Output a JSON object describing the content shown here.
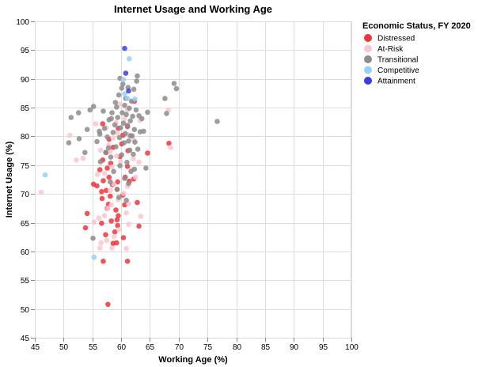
{
  "chart_data": {
    "type": "scatter",
    "title": "Internet Usage and Working Age",
    "xlabel": "Working Age (%)",
    "ylabel": "Internet Usage (%)",
    "xlim": [
      45,
      100
    ],
    "ylim": [
      45,
      100
    ],
    "x_ticks": [
      45,
      50,
      55,
      60,
      65,
      70,
      75,
      80,
      85,
      90,
      95,
      100
    ],
    "y_ticks": [
      45,
      50,
      55,
      60,
      65,
      70,
      75,
      80,
      85,
      90,
      95,
      100
    ],
    "grid": true,
    "legend": {
      "title": "Economic Status, FY 2020",
      "position": "right",
      "entries": [
        "Distressed",
        "At-Risk",
        "Transitional",
        "Competitive",
        "Attainment"
      ]
    },
    "colors": {
      "Distressed": "#f0353c",
      "At-Risk": "#fbc6cf",
      "Transitional": "#8c8c8c",
      "Competitive": "#99d0f4",
      "Attainment": "#3c3ce6"
    },
    "series": [
      {
        "name": "Distressed",
        "points": [
          [
            57.7,
            50.8
          ],
          [
            56.9,
            58.3
          ],
          [
            61.1,
            58.3
          ],
          [
            58.6,
            61.4
          ],
          [
            59.2,
            61.5
          ],
          [
            60.4,
            62.4
          ],
          [
            57.3,
            62.9
          ],
          [
            58.9,
            63.4
          ],
          [
            59.4,
            64.5
          ],
          [
            63.1,
            64.4
          ],
          [
            53.8,
            64.1
          ],
          [
            56.6,
            64.9
          ],
          [
            58.3,
            65.3
          ],
          [
            59.3,
            65.5
          ],
          [
            59.5,
            66.2
          ],
          [
            54.1,
            66.6
          ],
          [
            59.1,
            67.2
          ],
          [
            57.6,
            67.5
          ],
          [
            57.8,
            68.2
          ],
          [
            60.6,
            68.1
          ],
          [
            62.8,
            68.5
          ],
          [
            56.7,
            69.2
          ],
          [
            58.1,
            69.6
          ],
          [
            60.3,
            69.8
          ],
          [
            56.6,
            70.4
          ],
          [
            57.4,
            70.6
          ],
          [
            59.3,
            70.8
          ],
          [
            55.8,
            71.4
          ],
          [
            58.5,
            71.6
          ],
          [
            55.2,
            71.7
          ],
          [
            56.9,
            72.3
          ],
          [
            61.4,
            72.2
          ],
          [
            59.4,
            72.1
          ],
          [
            57.9,
            72.9
          ],
          [
            60.7,
            72.9
          ],
          [
            62.2,
            72.6
          ],
          [
            56.3,
            74.2
          ],
          [
            57.6,
            74.5
          ],
          [
            61.1,
            74.8
          ],
          [
            58.2,
            75.3
          ],
          [
            56.8,
            75.9
          ],
          [
            59.8,
            76.5
          ],
          [
            64.6,
            77.1
          ],
          [
            57.4,
            77.2
          ],
          [
            61.2,
            77.5
          ],
          [
            58.6,
            78.1
          ],
          [
            60.1,
            78.7
          ],
          [
            68.3,
            78.8
          ],
          [
            57.9,
            79.5
          ],
          [
            60.3,
            80.2
          ],
          [
            59.5,
            81.4
          ],
          [
            61.1,
            81.7
          ],
          [
            56.8,
            82.2
          ],
          [
            62.3,
            86.1
          ]
        ]
      },
      {
        "name": "At-Risk",
        "points": [
          [
            46.1,
            70.3
          ],
          [
            51.1,
            80.2
          ],
          [
            52.2,
            75.9
          ],
          [
            53.4,
            76.2
          ],
          [
            55.3,
            65.1
          ],
          [
            55.6,
            82.2
          ],
          [
            56.1,
            65.8
          ],
          [
            56.5,
            61.5
          ],
          [
            56.3,
            60.6
          ],
          [
            57.1,
            66.2
          ],
          [
            57.7,
            67.5
          ],
          [
            58.3,
            68.1
          ],
          [
            59.5,
            69.0
          ],
          [
            58.1,
            70.6
          ],
          [
            58.7,
            71.7
          ],
          [
            57.1,
            73.6
          ],
          [
            55.9,
            73.4
          ],
          [
            58.4,
            74.7
          ],
          [
            59.9,
            75.6
          ],
          [
            59.2,
            76.6
          ],
          [
            56.4,
            77.6
          ],
          [
            58.1,
            77.4
          ],
          [
            57.8,
            78.5
          ],
          [
            58.6,
            79.7
          ],
          [
            59.3,
            80.6
          ],
          [
            57.4,
            81.5
          ],
          [
            59.1,
            82.4
          ],
          [
            60.6,
            83.1
          ],
          [
            61.1,
            84.6
          ],
          [
            59.7,
            85.6
          ],
          [
            61.2,
            80.3
          ],
          [
            62.1,
            76.1
          ],
          [
            61.8,
            74.2
          ],
          [
            62.5,
            72.9
          ],
          [
            61.1,
            71.3
          ],
          [
            60.4,
            70.1
          ],
          [
            61.3,
            68.3
          ],
          [
            60.9,
            66.7
          ],
          [
            61.3,
            64.7
          ],
          [
            59.6,
            63.8
          ],
          [
            58.8,
            62.6
          ],
          [
            57.5,
            61.9
          ],
          [
            58.4,
            60.6
          ],
          [
            60.9,
            60.5
          ],
          [
            63.4,
            66.1
          ],
          [
            63.1,
            75.5
          ],
          [
            62.2,
            79.4
          ],
          [
            63.3,
            82.8
          ],
          [
            68.2,
            84.6
          ],
          [
            68.6,
            78.1
          ]
        ]
      },
      {
        "name": "Transitional",
        "points": [
          [
            50.9,
            78.9
          ],
          [
            51.3,
            83.3
          ],
          [
            52.7,
            79.6
          ],
          [
            52.6,
            84.1
          ],
          [
            53.7,
            77.2
          ],
          [
            54.1,
            81.2
          ],
          [
            54.6,
            84.6
          ],
          [
            55.1,
            62.3
          ],
          [
            55.2,
            85.2
          ],
          [
            55.8,
            79.1
          ],
          [
            56.2,
            80.9
          ],
          [
            56.4,
            75.6
          ],
          [
            56.9,
            84.4
          ],
          [
            57.1,
            81.4
          ],
          [
            57.6,
            79.9
          ],
          [
            57.8,
            78.0
          ],
          [
            57.9,
            82.9
          ],
          [
            58.2,
            76.4
          ],
          [
            58.4,
            84.1
          ],
          [
            58.6,
            80.7
          ],
          [
            58.7,
            73.9
          ],
          [
            58.9,
            82.0
          ],
          [
            59.1,
            78.2
          ],
          [
            59.2,
            85.1
          ],
          [
            59.3,
            70.8
          ],
          [
            59.4,
            83.3
          ],
          [
            59.6,
            87.2
          ],
          [
            59.7,
            79.8
          ],
          [
            59.8,
            74.9
          ],
          [
            59.9,
            81.5
          ],
          [
            60.1,
            76.8
          ],
          [
            60.2,
            84.1
          ],
          [
            60.3,
            89.1
          ],
          [
            60.4,
            82.3
          ],
          [
            60.5,
            78.9
          ],
          [
            60.6,
            72.7
          ],
          [
            60.7,
            80.5
          ],
          [
            60.8,
            86.6
          ],
          [
            60.9,
            83.8
          ],
          [
            61.0,
            75.5
          ],
          [
            61.1,
            81.9
          ],
          [
            61.2,
            88.5
          ],
          [
            61.3,
            79.2
          ],
          [
            61.4,
            84.9
          ],
          [
            61.5,
            77.6
          ],
          [
            61.6,
            82.7
          ],
          [
            61.7,
            73.9
          ],
          [
            61.8,
            86.1
          ],
          [
            61.9,
            80.1
          ],
          [
            62.0,
            83.5
          ],
          [
            62.1,
            76.9
          ],
          [
            62.2,
            88.2
          ],
          [
            62.3,
            81.2
          ],
          [
            62.4,
            79.0
          ],
          [
            62.6,
            84.6
          ],
          [
            62.7,
            89.6
          ],
          [
            62.8,
            90.5
          ],
          [
            62.9,
            77.8
          ],
          [
            63.1,
            83.6
          ],
          [
            63.3,
            80.8
          ],
          [
            63.6,
            83.1
          ],
          [
            63.9,
            80.9
          ],
          [
            64.3,
            74.5
          ],
          [
            64.6,
            84.2
          ],
          [
            67.6,
            86.6
          ],
          [
            67.9,
            84.0
          ],
          [
            69.2,
            89.2
          ],
          [
            69.6,
            88.3
          ],
          [
            76.7,
            82.6
          ],
          [
            60.1,
            88.4
          ],
          [
            59.0,
            85.9
          ],
          [
            58.3,
            83.1
          ],
          [
            57.3,
            77.2
          ],
          [
            56.3,
            80.4
          ],
          [
            58.1,
            72.1
          ],
          [
            59.6,
            69.4
          ],
          [
            60.9,
            68.9
          ],
          [
            61.3,
            71.8
          ],
          [
            62.3,
            74.3
          ],
          [
            61.6,
            80.1
          ],
          [
            60.6,
            85.4
          ],
          [
            59.8,
            90.1
          ]
        ]
      },
      {
        "name": "Competitive",
        "points": [
          [
            46.8,
            73.3
          ],
          [
            55.3,
            59.0
          ],
          [
            60.4,
            89.9
          ],
          [
            61.4,
            93.5
          ],
          [
            62.4,
            86.5
          ],
          [
            61.1,
            86.6
          ],
          [
            60.6,
            87.4
          ]
        ]
      },
      {
        "name": "Attainment",
        "points": [
          [
            60.6,
            95.3
          ],
          [
            60.8,
            91.0
          ],
          [
            61.3,
            87.9
          ]
        ]
      }
    ]
  }
}
